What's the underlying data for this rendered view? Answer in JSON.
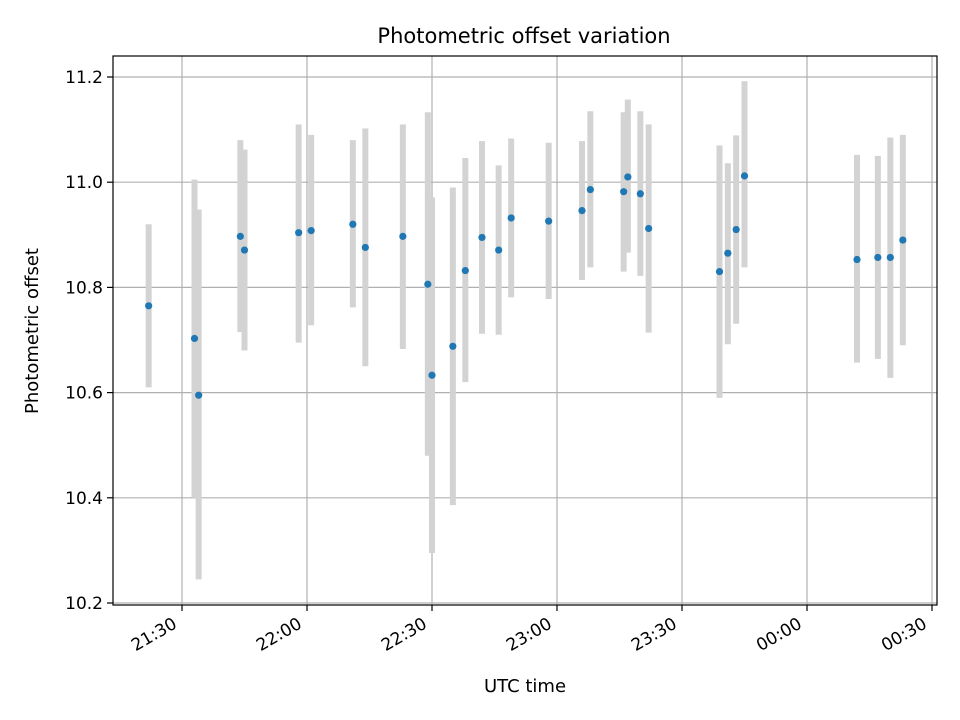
{
  "chart_data": {
    "type": "scatter",
    "title": "Photometric offset variation",
    "xlabel": "UTC time",
    "ylabel": "Photometric offset",
    "x_ticks": [
      "21:30",
      "22:00",
      "22:30",
      "23:00",
      "23:30",
      "00:00",
      "00:30"
    ],
    "y_ticks": [
      "10.2",
      "10.4",
      "10.6",
      "10.8",
      "11.0",
      "11.2"
    ],
    "grid": true,
    "point_color": "#1f77b4",
    "errorbar_color": "#d3d3d3",
    "points": [
      {
        "t": "21:22",
        "y": 10.765,
        "lo": 10.61,
        "hi": 10.92
      },
      {
        "t": "21:33",
        "y": 10.703,
        "lo": 10.4,
        "hi": 11.005
      },
      {
        "t": "21:34",
        "y": 10.595,
        "lo": 10.245,
        "hi": 10.948
      },
      {
        "t": "21:44",
        "y": 10.897,
        "lo": 10.715,
        "hi": 11.08
      },
      {
        "t": "21:45",
        "y": 10.871,
        "lo": 10.68,
        "hi": 11.062
      },
      {
        "t": "21:58",
        "y": 10.904,
        "lo": 10.695,
        "hi": 11.11
      },
      {
        "t": "22:01",
        "y": 10.908,
        "lo": 10.728,
        "hi": 11.09
      },
      {
        "t": "22:11",
        "y": 10.92,
        "lo": 10.762,
        "hi": 11.08
      },
      {
        "t": "22:14",
        "y": 10.876,
        "lo": 10.65,
        "hi": 11.102
      },
      {
        "t": "22:23",
        "y": 10.897,
        "lo": 10.683,
        "hi": 11.11
      },
      {
        "t": "22:29",
        "y": 10.806,
        "lo": 10.48,
        "hi": 11.133
      },
      {
        "t": "22:30",
        "y": 10.633,
        "lo": 10.295,
        "hi": 10.971
      },
      {
        "t": "22:35",
        "y": 10.688,
        "lo": 10.386,
        "hi": 10.99
      },
      {
        "t": "22:38",
        "y": 10.832,
        "lo": 10.62,
        "hi": 11.046
      },
      {
        "t": "22:42",
        "y": 10.895,
        "lo": 10.712,
        "hi": 11.078
      },
      {
        "t": "22:46",
        "y": 10.871,
        "lo": 10.71,
        "hi": 11.032
      },
      {
        "t": "22:49",
        "y": 10.932,
        "lo": 10.781,
        "hi": 11.083
      },
      {
        "t": "22:58",
        "y": 10.926,
        "lo": 10.778,
        "hi": 11.075
      },
      {
        "t": "23:06",
        "y": 10.946,
        "lo": 10.814,
        "hi": 11.078
      },
      {
        "t": "23:08",
        "y": 10.986,
        "lo": 10.838,
        "hi": 11.135
      },
      {
        "t": "23:16",
        "y": 10.982,
        "lo": 10.83,
        "hi": 11.133
      },
      {
        "t": "23:17",
        "y": 11.01,
        "lo": 10.866,
        "hi": 11.157
      },
      {
        "t": "23:20",
        "y": 10.978,
        "lo": 10.822,
        "hi": 11.135
      },
      {
        "t": "23:22",
        "y": 10.912,
        "lo": 10.714,
        "hi": 11.11
      },
      {
        "t": "23:39",
        "y": 10.83,
        "lo": 10.59,
        "hi": 11.07
      },
      {
        "t": "23:41",
        "y": 10.865,
        "lo": 10.692,
        "hi": 11.036
      },
      {
        "t": "23:43",
        "y": 10.91,
        "lo": 10.731,
        "hi": 11.089
      },
      {
        "t": "23:45",
        "y": 11.012,
        "lo": 10.838,
        "hi": 11.192
      },
      {
        "t": "00:12",
        "y": 10.853,
        "lo": 10.657,
        "hi": 11.052
      },
      {
        "t": "00:17",
        "y": 10.857,
        "lo": 10.664,
        "hi": 11.05
      },
      {
        "t": "00:20",
        "y": 10.857,
        "lo": 10.628,
        "hi": 11.085
      },
      {
        "t": "00:23",
        "y": 10.89,
        "lo": 10.69,
        "hi": 11.09
      }
    ]
  }
}
